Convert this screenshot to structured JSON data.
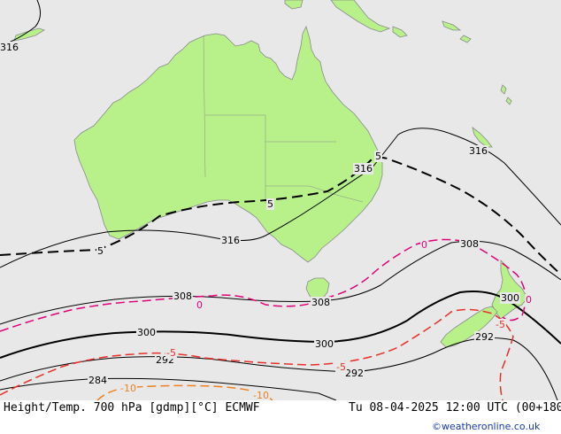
{
  "colors": {
    "sea": "#e8e8e8",
    "land": "#b8f08a",
    "coast": "#8a8a8a",
    "height_contour": "#000000",
    "temp_zero": "#e0007a",
    "temp_minus5": "#e8302a",
    "temp_minus10": "#f08020",
    "temp_plus5": "#000000",
    "credit": "#1a3ab0"
  },
  "contour_labels": {
    "h316_nw": "316",
    "h316_east": "316",
    "h316_coast": "316",
    "h316_south": "316",
    "h308_east": "308",
    "h308_west": "308",
    "h308_tas": "308",
    "h300_nz": "300",
    "h300_west": "300",
    "h300_mid": "300",
    "h292_nz": "292",
    "h292_west": "292",
    "h292_mid": "292",
    "h284_west": "284",
    "t5_mid": "5",
    "t5_west": "5",
    "t5_coast": "5",
    "t0_sea": "0",
    "t0_west": "0",
    "t0_nz": "0",
    "tm5_west": "-5",
    "tm5_mid": "-5",
    "tm5_nz": "-5",
    "tm10_west": "-10",
    "tm10_east": "-10"
  },
  "footer": {
    "title": "Height/Temp. 700 hPa [gdmp][°C] ECMWF",
    "valid_time": "Tu 08-04-2025 12:00 UTC (00+180)",
    "credit": "©weatheronline.co.uk"
  }
}
